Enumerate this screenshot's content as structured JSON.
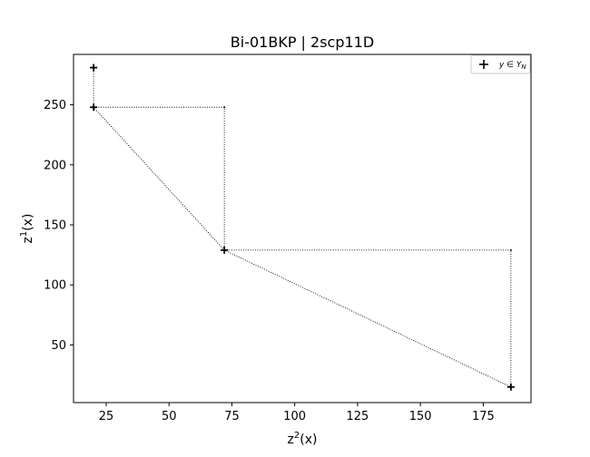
{
  "chart_data": {
    "type": "scatter",
    "title": "Bi-01BKP | 2scp11D",
    "xlabel": {
      "base": "z",
      "sup": "2",
      "tail": "(x)"
    },
    "ylabel": {
      "base": "z",
      "sup": "1",
      "tail": "(x)"
    },
    "xlim": [
      12,
      194
    ],
    "ylim": [
      2,
      292
    ],
    "xticks": [
      25,
      50,
      75,
      100,
      125,
      150,
      175
    ],
    "yticks": [
      50,
      100,
      150,
      200,
      250
    ],
    "grid": false,
    "legend_position": "top-right",
    "series": [
      {
        "name": "y ∈ Y_N",
        "marker": "plus",
        "color": "#000000",
        "x": [
          20,
          20,
          72,
          186
        ],
        "y": [
          281,
          248,
          129,
          15
        ]
      }
    ],
    "dotted_polyline": {
      "color": "#000000",
      "points": [
        [
          20,
          248
        ],
        [
          72,
          248
        ],
        [
          72,
          129
        ],
        [
          186,
          129
        ],
        [
          186,
          15
        ],
        [
          72,
          129
        ],
        [
          20,
          248
        ],
        [
          20,
          281
        ]
      ]
    },
    "legend": {
      "label_main": "y ∈ Y",
      "label_sub": "N"
    }
  }
}
